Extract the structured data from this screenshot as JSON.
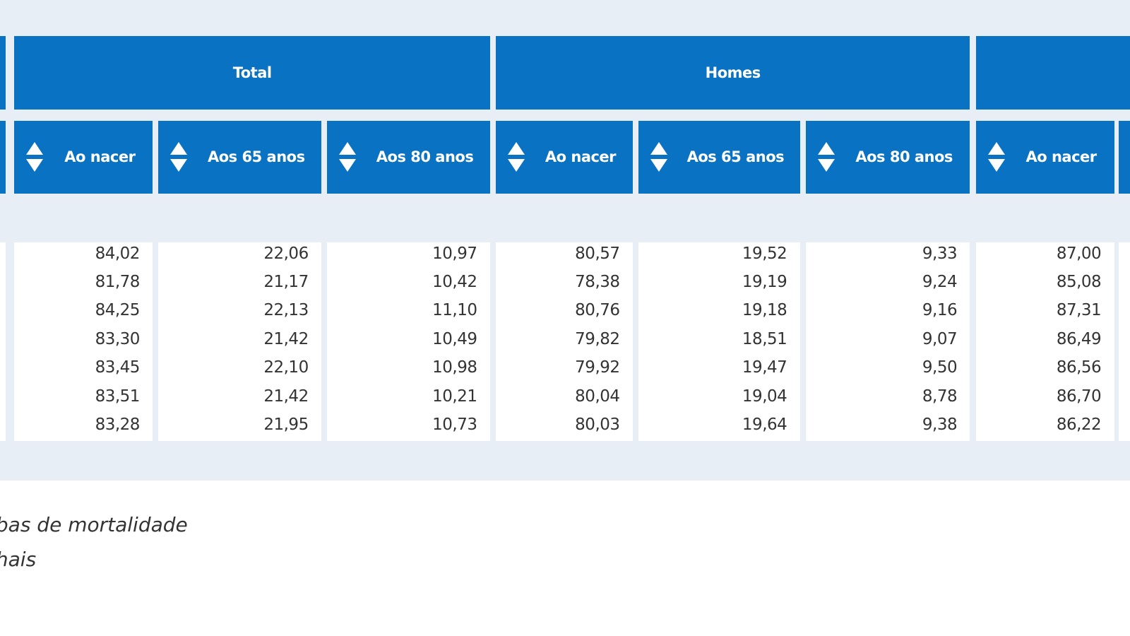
{
  "table": {
    "groups": [
      "Total",
      "Homes"
    ],
    "columns": [
      "Ao nacer",
      "Aos 65 anos",
      "Aos 80 anos",
      "Ao nacer",
      "Aos 65 anos",
      "Aos 80 anos",
      "Ao nacer"
    ],
    "rows": [
      [
        "84,02",
        "22,06",
        "10,97",
        "80,57",
        "19,52",
        "9,33",
        "87,00"
      ],
      [
        "81,78",
        "21,17",
        "10,42",
        "78,38",
        "19,19",
        "9,24",
        "85,08"
      ],
      [
        "84,25",
        "22,13",
        "11,10",
        "80,76",
        "19,18",
        "9,16",
        "87,31"
      ],
      [
        "83,30",
        "21,42",
        "10,49",
        "79,82",
        "18,51",
        "9,07",
        "86,49"
      ],
      [
        "83,45",
        "22,10",
        "10,98",
        "79,92",
        "19,47",
        "9,50",
        "86,56"
      ],
      [
        "83,51",
        "21,42",
        "10,21",
        "80,04",
        "19,04",
        "8,78",
        "86,70"
      ],
      [
        "83,28",
        "21,95",
        "10,73",
        "80,03",
        "19,64",
        "9,38",
        "86,22"
      ]
    ]
  },
  "footer": {
    "lines": [
      "bas de mortalidade",
      "hais"
    ]
  }
}
